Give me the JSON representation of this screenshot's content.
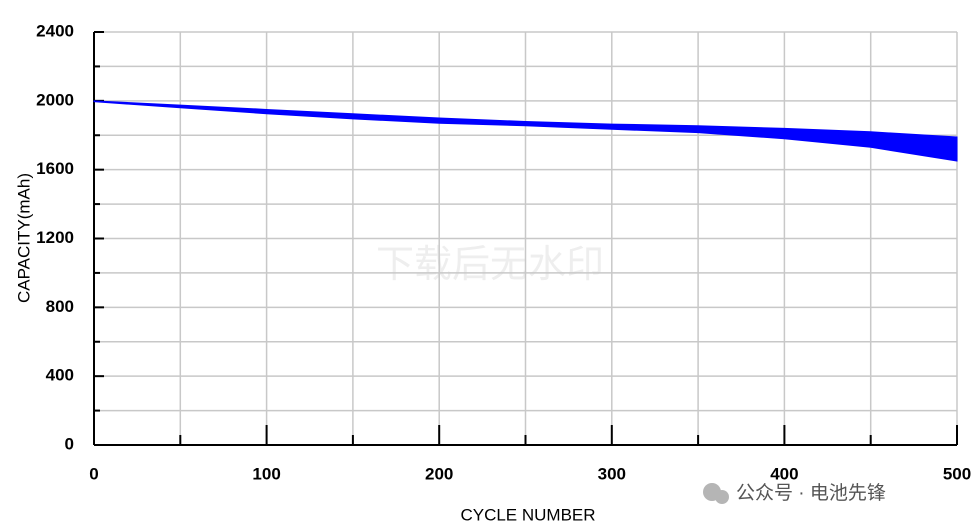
{
  "chart_data": {
    "type": "band",
    "x_label": "CYCLE NUMBER",
    "y_label": "CAPACITY(mAh)",
    "x": [
      0,
      50,
      100,
      150,
      200,
      250,
      300,
      350,
      400,
      450,
      500
    ],
    "upper": [
      2000,
      1975,
      1950,
      1925,
      1900,
      1880,
      1865,
      1855,
      1840,
      1820,
      1790
    ],
    "lower": [
      1995,
      1960,
      1925,
      1895,
      1870,
      1855,
      1835,
      1815,
      1780,
      1730,
      1650
    ],
    "color": "#0000ff",
    "xlim": [
      0,
      500
    ],
    "xticks": [
      0,
      100,
      200,
      300,
      400,
      500
    ],
    "x_minor_ticks": [
      50,
      150,
      250,
      350,
      450
    ],
    "ylim": [
      0,
      2400
    ],
    "yticks": [
      0,
      400,
      800,
      1200,
      1600,
      2000,
      2400
    ],
    "y_minor_ticks": [
      200,
      600,
      1000,
      1400,
      1800,
      2200
    ],
    "grid": true,
    "watermark": "下载后无水印",
    "source": "公众号 · 电池先锋"
  }
}
